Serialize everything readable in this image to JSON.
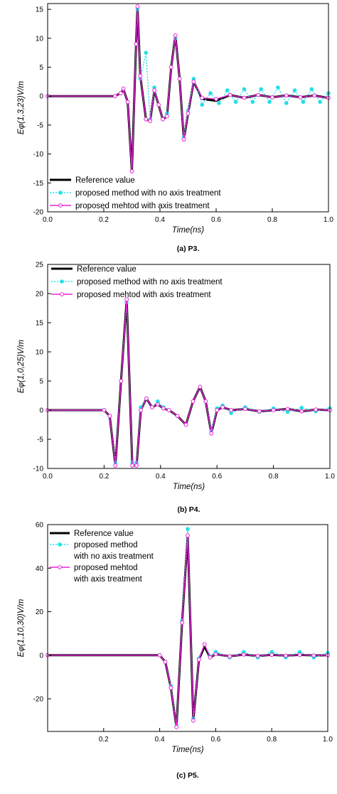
{
  "figure": {
    "colors": {
      "reference": "#000000",
      "no_axis": "#22e0e6",
      "axis": "#ee22d6"
    },
    "icons": {
      "no_axis_marker": "filled-circle-icon",
      "axis_marker": "open-circle-icon"
    }
  },
  "chart_data": [
    {
      "type": "line",
      "caption": "(a) P3.",
      "xlabel": "Time(ns)",
      "ylabel": "Eφ(1,3,23)V/m",
      "xlim": [
        0.0,
        1.0
      ],
      "ylim": [
        -20,
        16
      ],
      "xticks": [
        0.0,
        0.2,
        0.4,
        0.6,
        0.8,
        1.0
      ],
      "xtick_labels": [
        "0.0",
        "0.2",
        "0.4",
        "0.6",
        "0.8",
        "1.0"
      ],
      "yticks": [
        -20,
        -15,
        -10,
        -5,
        0,
        5,
        10,
        15
      ],
      "ytick_labels": [
        "-20",
        "-15",
        "-10",
        "-5",
        "0",
        "5",
        "10",
        "15"
      ],
      "legend_position": "bottom-left",
      "legend": [
        "Reference value",
        "proposed method with no axis treatment",
        "proposed mehtod with axis treatment"
      ],
      "grid": false,
      "series": [
        {
          "name": "Reference value",
          "style": "solid-thick",
          "x": [
            0.0,
            0.24,
            0.26,
            0.27,
            0.285,
            0.3,
            0.315,
            0.32,
            0.33,
            0.35,
            0.365,
            0.38,
            0.395,
            0.41,
            0.425,
            0.44,
            0.455,
            0.47,
            0.485,
            0.5,
            0.52,
            0.55,
            0.6,
            0.65,
            0.7,
            0.75,
            0.8,
            0.85,
            0.9,
            0.95,
            1.0
          ],
          "y": [
            0,
            0,
            0.5,
            1.2,
            -1.0,
            -13.0,
            9.0,
            15.5,
            3.5,
            -4.0,
            -4.3,
            1.0,
            -1.5,
            -4.0,
            -3.5,
            5.0,
            10.5,
            3.0,
            -7.5,
            -3.0,
            2.5,
            -0.5,
            -0.8,
            0.2,
            -0.3,
            0.2,
            -0.2,
            0.1,
            -0.2,
            0.1,
            -0.3
          ]
        },
        {
          "name": "proposed method with no axis treatment",
          "style": "dotted-filled-markers",
          "x": [
            0.0,
            0.24,
            0.26,
            0.27,
            0.285,
            0.3,
            0.315,
            0.32,
            0.33,
            0.35,
            0.365,
            0.38,
            0.395,
            0.41,
            0.425,
            0.44,
            0.455,
            0.47,
            0.485,
            0.5,
            0.52,
            0.55,
            0.58,
            0.61,
            0.64,
            0.67,
            0.7,
            0.73,
            0.76,
            0.79,
            0.82,
            0.85,
            0.88,
            0.91,
            0.94,
            0.97,
            1.0
          ],
          "y": [
            0,
            0,
            0.5,
            1.2,
            -1.0,
            -13.0,
            9.0,
            15.0,
            3.0,
            7.5,
            -4.0,
            1.5,
            -1.5,
            -4.0,
            -3.0,
            5.0,
            10.0,
            3.0,
            -7.0,
            -2.5,
            3.0,
            -1.5,
            0.5,
            -1.2,
            1.0,
            -1.0,
            1.2,
            -1.0,
            1.2,
            -1.0,
            1.5,
            -1.2,
            1.0,
            -1.0,
            1.2,
            -1.0,
            0.5
          ]
        },
        {
          "name": "proposed mehtod with axis treatment",
          "style": "solid-open-markers",
          "x": [
            0.0,
            0.24,
            0.26,
            0.27,
            0.285,
            0.3,
            0.315,
            0.32,
            0.33,
            0.35,
            0.365,
            0.38,
            0.395,
            0.41,
            0.425,
            0.44,
            0.455,
            0.47,
            0.485,
            0.5,
            0.52,
            0.55,
            0.6,
            0.65,
            0.7,
            0.75,
            0.8,
            0.85,
            0.9,
            0.95,
            1.0
          ],
          "y": [
            0,
            0,
            0.5,
            1.3,
            -1.0,
            -13.0,
            9.0,
            15.5,
            3.5,
            -4.0,
            -4.3,
            1.0,
            -1.5,
            -4.0,
            -3.5,
            5.0,
            10.5,
            3.0,
            -7.5,
            -3.0,
            2.5,
            -0.3,
            -0.5,
            0.2,
            -0.3,
            0.2,
            -0.2,
            0.1,
            -0.2,
            0.1,
            -0.3
          ]
        }
      ]
    },
    {
      "type": "line",
      "caption": "(b) P4.",
      "xlabel": "Time(ns)",
      "ylabel": "Eφ(1,0,25)V/m",
      "xlim": [
        0.0,
        1.0
      ],
      "ylim": [
        -10,
        25
      ],
      "xticks": [
        0.0,
        0.2,
        0.4,
        0.6,
        0.8,
        1.0
      ],
      "xtick_labels": [
        "0.0",
        "0.2",
        "0.4",
        "0.6",
        "0.8",
        "1.0"
      ],
      "yticks": [
        -10,
        -5,
        0,
        5,
        10,
        15,
        20,
        25
      ],
      "ytick_labels": [
        "-10",
        "-5",
        "0",
        "5",
        "10",
        "15",
        "20",
        "25"
      ],
      "legend_position": "top-center",
      "legend": [
        "Reference value",
        "proposed method with no axis treatment",
        "proposed mehtod with axis treatment"
      ],
      "grid": false,
      "series": [
        {
          "name": "Reference value",
          "style": "solid-thick",
          "x": [
            0.0,
            0.2,
            0.22,
            0.24,
            0.26,
            0.28,
            0.3,
            0.315,
            0.33,
            0.35,
            0.37,
            0.39,
            0.41,
            0.43,
            0.46,
            0.49,
            0.515,
            0.54,
            0.56,
            0.58,
            0.6,
            0.62,
            0.65,
            0.7,
            0.75,
            0.8,
            0.85,
            0.9,
            0.95,
            1.0
          ],
          "y": [
            0,
            0,
            -1.0,
            -9.5,
            5.0,
            19.0,
            -9.5,
            -9.5,
            0,
            2.0,
            0.5,
            1.0,
            0.3,
            0,
            -1.0,
            -2.5,
            1.5,
            4.0,
            1.5,
            -4.0,
            0,
            0.5,
            0,
            0.2,
            -0.2,
            0,
            0.2,
            -0.2,
            0.1,
            0
          ]
        },
        {
          "name": "proposed method with no axis treatment",
          "style": "dotted-filled-markers",
          "x": [
            0.0,
            0.2,
            0.22,
            0.24,
            0.26,
            0.28,
            0.3,
            0.315,
            0.33,
            0.35,
            0.37,
            0.39,
            0.41,
            0.43,
            0.46,
            0.49,
            0.515,
            0.54,
            0.56,
            0.58,
            0.6,
            0.62,
            0.65,
            0.7,
            0.75,
            0.8,
            0.85,
            0.9,
            0.95,
            1.0
          ],
          "y": [
            0,
            0,
            -1.0,
            -9.0,
            5.0,
            18.5,
            -9.0,
            -9.0,
            0.5,
            2.0,
            0.5,
            1.5,
            0.5,
            0,
            -1.0,
            -2.5,
            1.5,
            4.0,
            1.5,
            -3.5,
            0.3,
            0.8,
            -0.5,
            0.5,
            -0.3,
            0.3,
            -0.3,
            0.4,
            -0.2,
            0.3
          ]
        },
        {
          "name": "proposed mehtod with axis treatment",
          "style": "solid-open-markers",
          "x": [
            0.0,
            0.2,
            0.22,
            0.24,
            0.26,
            0.28,
            0.3,
            0.315,
            0.33,
            0.35,
            0.37,
            0.39,
            0.41,
            0.43,
            0.46,
            0.49,
            0.515,
            0.54,
            0.56,
            0.58,
            0.6,
            0.62,
            0.65,
            0.7,
            0.75,
            0.8,
            0.85,
            0.9,
            0.95,
            1.0
          ],
          "y": [
            0,
            0,
            -1.0,
            -9.5,
            5.0,
            19.0,
            -9.5,
            -9.5,
            0,
            2.0,
            0.5,
            1.0,
            0.3,
            0,
            -1.0,
            -2.5,
            1.5,
            4.0,
            1.5,
            -4.0,
            0,
            0.5,
            0,
            0.2,
            -0.2,
            0,
            0.2,
            -0.2,
            0.1,
            0
          ]
        }
      ]
    },
    {
      "type": "line",
      "caption": "(c) P5.",
      "xlabel": "Time(ns)",
      "ylabel": "Eφ(1,10,30)V/m",
      "xlim": [
        0.0,
        1.0
      ],
      "ylim": [
        -35,
        60
      ],
      "xticks": [
        0.2,
        0.4,
        0.6,
        0.8,
        1.0
      ],
      "xtick_labels": [
        "0.2",
        "0.4",
        "0.6",
        "0.8",
        "1.0"
      ],
      "yticks": [
        -20,
        0,
        20,
        40,
        60
      ],
      "ytick_labels": [
        "-20",
        "0",
        "20",
        "40",
        "60"
      ],
      "legend_position": "top-left",
      "legend": [
        "Reference value",
        "proposed method",
        "with no axis treatment",
        "proposed mehtod",
        "with axis treatment"
      ],
      "grid": false,
      "series": [
        {
          "name": "Reference value",
          "style": "solid-thick",
          "x": [
            0.0,
            0.4,
            0.42,
            0.44,
            0.46,
            0.48,
            0.5,
            0.52,
            0.54,
            0.56,
            0.58,
            0.6,
            0.65,
            0.7,
            0.75,
            0.8,
            0.85,
            0.9,
            0.95,
            1.0
          ],
          "y": [
            0,
            0,
            -3.0,
            -15.0,
            -33.0,
            15.0,
            55.0,
            -30.0,
            -2.0,
            4.0,
            -1.0,
            0.5,
            -0.5,
            0.3,
            -0.3,
            0.2,
            -0.2,
            0.2,
            -0.1,
            0
          ]
        },
        {
          "name": "proposed method with no axis treatment",
          "style": "dotted-filled-markers",
          "x": [
            0.0,
            0.4,
            0.42,
            0.44,
            0.46,
            0.48,
            0.5,
            0.52,
            0.54,
            0.56,
            0.58,
            0.6,
            0.65,
            0.7,
            0.75,
            0.8,
            0.85,
            0.9,
            0.95,
            1.0
          ],
          "y": [
            0,
            0,
            -3.0,
            -14.0,
            -32.0,
            16.0,
            58.0,
            -29.0,
            -1.5,
            5.0,
            -0.5,
            1.5,
            -1.0,
            1.5,
            -1.0,
            1.5,
            -1.0,
            1.5,
            -1.0,
            1.0
          ]
        },
        {
          "name": "proposed mehtod with axis treatment",
          "style": "solid-open-markers",
          "x": [
            0.0,
            0.4,
            0.42,
            0.44,
            0.46,
            0.48,
            0.5,
            0.52,
            0.54,
            0.56,
            0.58,
            0.6,
            0.65,
            0.7,
            0.75,
            0.8,
            0.85,
            0.9,
            0.95,
            1.0
          ],
          "y": [
            0,
            0,
            -3.0,
            -15.0,
            -33.0,
            15.0,
            55.0,
            -30.0,
            -2.0,
            5.0,
            -1.0,
            0.5,
            -0.5,
            0.3,
            -0.3,
            0.2,
            -0.2,
            0.2,
            -0.1,
            0
          ]
        }
      ]
    }
  ]
}
